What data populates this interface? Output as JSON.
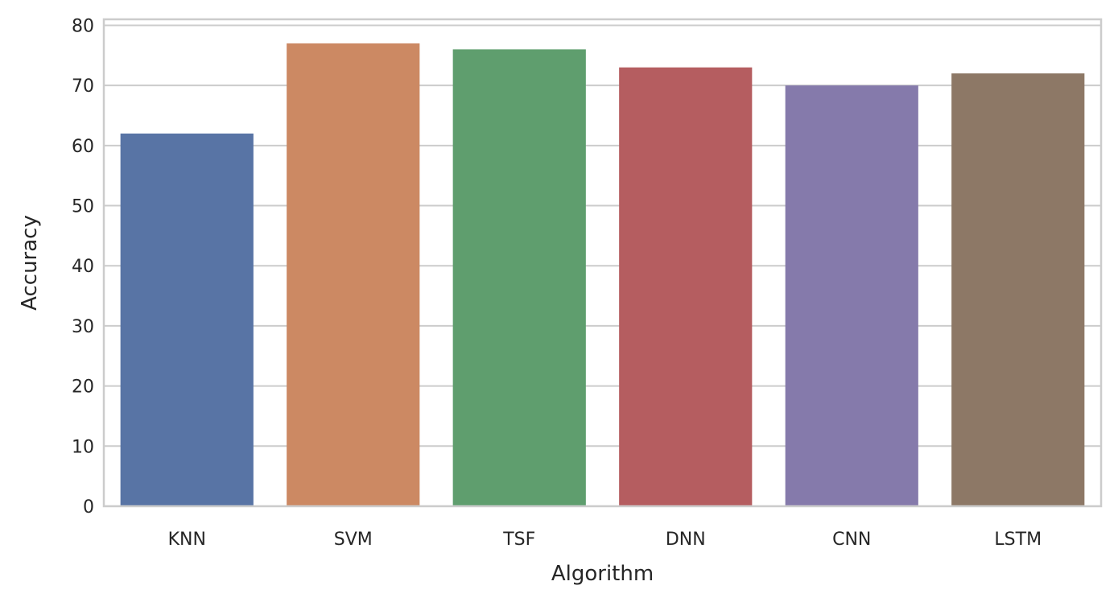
{
  "chart_data": {
    "type": "bar",
    "title": "",
    "xlabel": "Algorithm",
    "ylabel": "Accuracy",
    "categories": [
      "KNN",
      "SVM",
      "TSF",
      "DNN",
      "CNN",
      "LSTM"
    ],
    "values": [
      62,
      77,
      76,
      73,
      70,
      72
    ],
    "colors": [
      "#5874a5",
      "#cc8963",
      "#5f9e6e",
      "#b55d60",
      "#857aab",
      "#8d7866"
    ],
    "ylim": [
      0,
      81
    ],
    "yticks": [
      0,
      10,
      20,
      30,
      40,
      50,
      60,
      70,
      80
    ],
    "grid": "horizontal",
    "legend": "none",
    "background": "#ffffff",
    "grid_color": "#cccccc",
    "spine_color": "#cccccc"
  }
}
